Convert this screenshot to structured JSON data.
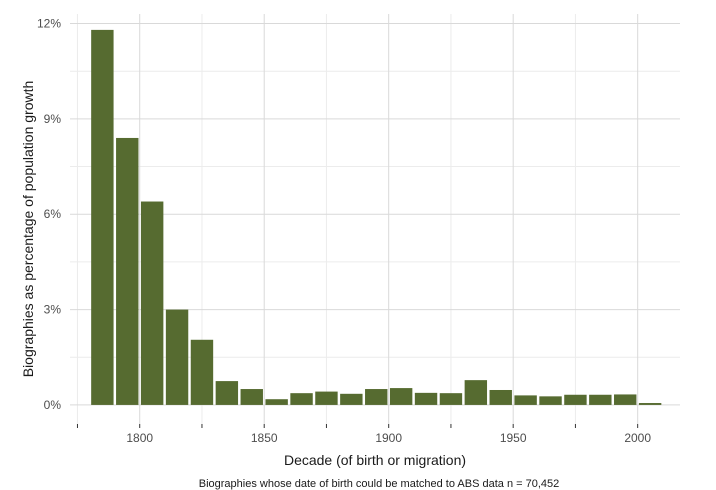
{
  "chart_data": {
    "type": "bar",
    "xlabel": "Decade (of birth or migration)",
    "ylabel": "Biographies as percentage of population growth",
    "caption": "Biographies whose date of birth could be matched to ABS data n = 70,452",
    "x": [
      1780,
      1790,
      1800,
      1810,
      1820,
      1830,
      1840,
      1850,
      1860,
      1870,
      1880,
      1890,
      1900,
      1910,
      1920,
      1930,
      1940,
      1950,
      1960,
      1970,
      1980,
      1990,
      2000
    ],
    "values": [
      11.8,
      8.4,
      6.4,
      3.0,
      2.05,
      0.75,
      0.5,
      0.18,
      0.37,
      0.42,
      0.35,
      0.5,
      0.53,
      0.38,
      0.37,
      0.78,
      0.47,
      0.3,
      0.27,
      0.32,
      0.32,
      0.33,
      0.06
    ],
    "xlim": [
      1772,
      2017
    ],
    "ylim": [
      -0.6,
      12.3
    ],
    "x_ticks": [
      1800,
      1850,
      1900,
      1950,
      2000
    ],
    "x_tick_labels": [
      "1800",
      "1850",
      "1900",
      "1950",
      "2000"
    ],
    "y_ticks": [
      0,
      3,
      6,
      9,
      12
    ],
    "y_tick_labels": [
      "0%",
      "3%",
      "6%",
      "9%",
      "12%"
    ],
    "grid": true,
    "colors": {
      "bar": "#566b30",
      "grid": "#d9d9d9",
      "axis": "#333333"
    }
  }
}
